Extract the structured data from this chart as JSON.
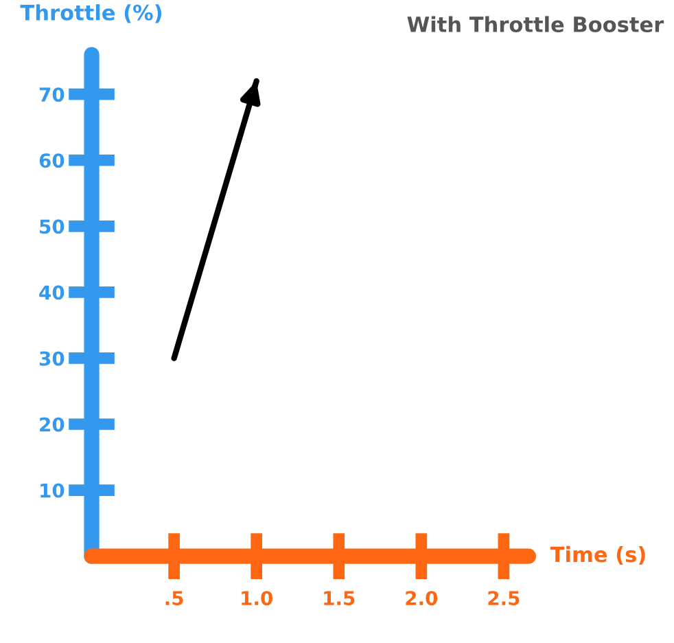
{
  "chart_data": {
    "type": "line",
    "title": "With Throttle Booster",
    "xlabel": "Time (s)",
    "ylabel": "Throttle (%)",
    "x": [
      0.5,
      1.0
    ],
    "series": [
      {
        "color": "#000000",
        "values": [
          30,
          72
        ]
      }
    ],
    "xlim": [
      0,
      2.65
    ],
    "ylim": [
      0,
      76
    ],
    "xticks": [
      {
        "value": 0.5,
        "label": ".5"
      },
      {
        "value": 1.0,
        "label": "1.0"
      },
      {
        "value": 1.5,
        "label": "1.5"
      },
      {
        "value": 2.0,
        "label": "2.0"
      },
      {
        "value": 2.5,
        "label": "2.5"
      }
    ],
    "yticks": [
      10,
      20,
      30,
      40,
      50,
      60,
      70
    ],
    "grid": false,
    "legend": false,
    "marker": "none",
    "line_style": "solid"
  }
}
